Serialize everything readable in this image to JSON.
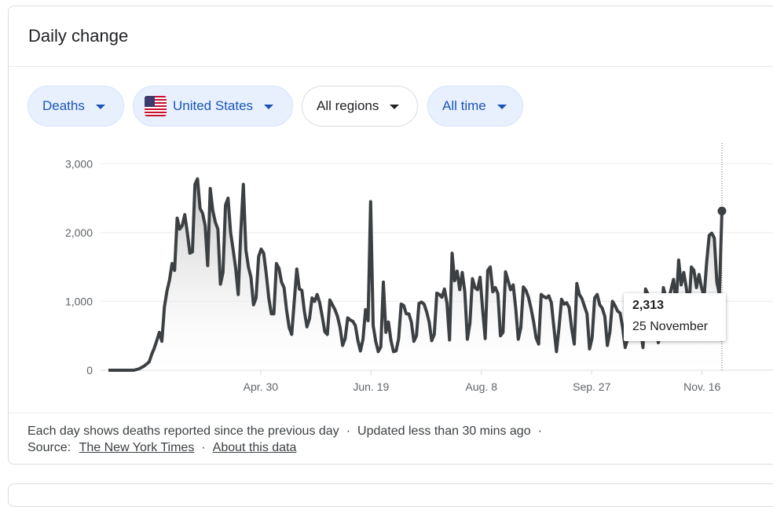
{
  "card": {
    "title": "Daily change"
  },
  "filters": [
    {
      "label": "Deaths",
      "style": "blue",
      "icon": null
    },
    {
      "label": "United States",
      "style": "blue",
      "icon": "us-flag-icon"
    },
    {
      "label": "All regions",
      "style": "plain",
      "icon": null
    },
    {
      "label": "All time",
      "style": "plain-blue",
      "icon": null
    }
  ],
  "tooltip": {
    "value": "2,313",
    "date": "25 November"
  },
  "footer": {
    "line1": "Each day shows deaths reported since the previous day",
    "sep": "·",
    "updated": "Updated less than 30 mins ago",
    "source_label": "Source:",
    "source_link": "The New York Times",
    "about_link": "About this data"
  },
  "colors": {
    "line": "#3c4043",
    "accent": "#1a54b8",
    "chip_bg": "#e8f0fe"
  },
  "chart_data": {
    "type": "area",
    "title": "",
    "xlabel": "",
    "ylabel": "",
    "ylim": [
      0,
      3300
    ],
    "yticks": [
      0,
      1000,
      2000,
      3000
    ],
    "ytick_labels": [
      "0",
      "1,000",
      "2,000",
      "3,000"
    ],
    "xticks": [
      {
        "day": 121,
        "label": "Apr. 30"
      },
      {
        "day": 171,
        "label": "Jun. 19"
      },
      {
        "day": 221,
        "label": "Aug. 8"
      },
      {
        "day": 271,
        "label": "Sep. 27"
      },
      {
        "day": 321,
        "label": "Nov. 16"
      }
    ],
    "first_day": 52,
    "last_day": 330,
    "grid": true,
    "series": [
      {
        "values": [
          0,
          0,
          0,
          0,
          0,
          0,
          0,
          0,
          0,
          0,
          0,
          10,
          20,
          40,
          60,
          90,
          120,
          230,
          320,
          430,
          550,
          420,
          920,
          1150,
          1310,
          1550,
          1450,
          2210,
          2050,
          2100,
          2260,
          2000,
          1700,
          1720,
          2700,
          2780,
          2350,
          2280,
          2100,
          1520,
          2640,
          2320,
          2150,
          2050,
          1250,
          1420,
          2400,
          2500,
          2000,
          1750,
          1480,
          1100,
          2000,
          2700,
          1750,
          1500,
          1350,
          950,
          1050,
          1650,
          1760,
          1700,
          1400,
          1050,
          820,
          820,
          1550,
          1480,
          1280,
          1200,
          870,
          620,
          520,
          1000,
          1470,
          1180,
          1160,
          850,
          630,
          750,
          1050,
          1000,
          1100,
          980,
          780,
          560,
          520,
          1020,
          950,
          880,
          780,
          620,
          360,
          460,
          760,
          730,
          710,
          650,
          430,
          280,
          450,
          880,
          720,
          2450,
          650,
          420,
          270,
          340,
          1280,
          550,
          700,
          430,
          270,
          280,
          460,
          960,
          940,
          820,
          820,
          700,
          420,
          500,
          970,
          990,
          960,
          850,
          700,
          430,
          520,
          1120,
          1100,
          1060,
          1180,
          970,
          440,
          1700,
          1300,
          1440,
          1170,
          1420,
          1140,
          450,
          680,
          1330,
          1200,
          1170,
          1350,
          880,
          460,
          1450,
          1500,
          1140,
          1200,
          1110,
          500,
          550,
          1430,
          1300,
          1170,
          1240,
          900,
          450,
          620,
          1210,
          1160,
          1060,
          900,
          710,
          470,
          380,
          1100,
          1070,
          1050,
          1080,
          980,
          620,
          270,
          620,
          1030,
          960,
          980,
          910,
          600,
          380,
          1260,
          1100,
          1040,
          930,
          820,
          310,
          470,
          1050,
          1100,
          950,
          900,
          780,
          360,
          560,
          1000,
          940,
          860,
          830,
          620,
          330,
          460,
          1010,
          920,
          950,
          900,
          600,
          330,
          1180,
          1100,
          950,
          940,
          780,
          400,
          520,
          1200,
          1050,
          1000,
          1170,
          1320,
          940,
          1600,
          1240,
          1420,
          1200,
          880,
          1500,
          1450,
          1200,
          1390,
          1200,
          1070,
          1570,
          1960,
          1990,
          1920,
          1280,
          1100,
          2313
        ]
      }
    ]
  }
}
